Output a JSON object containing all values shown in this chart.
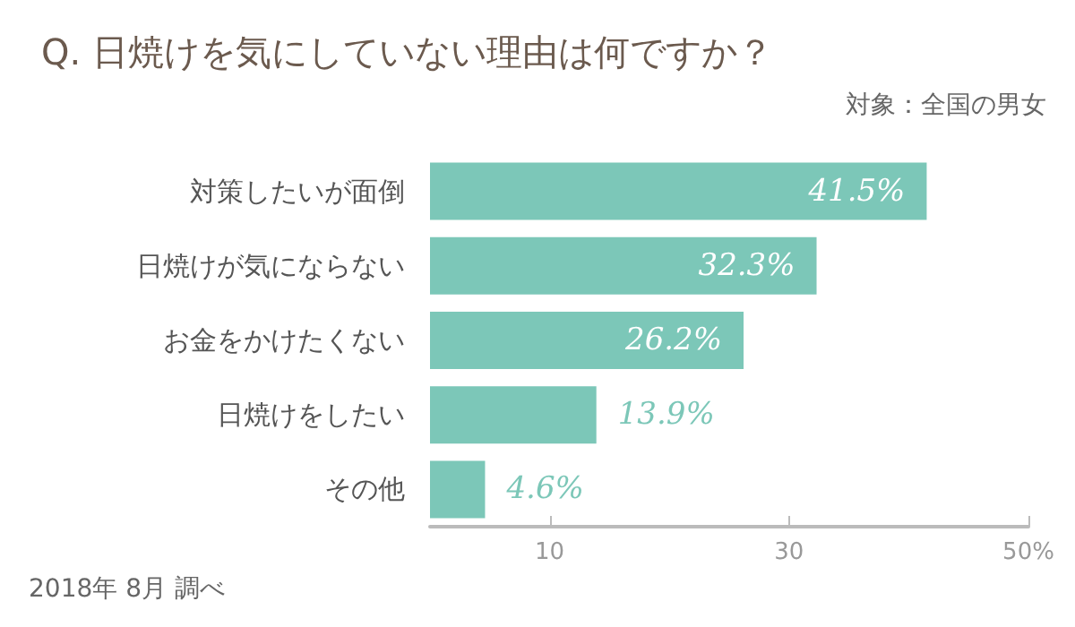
{
  "chart_data": {
    "type": "bar",
    "orientation": "horizontal",
    "title": "Q. 日焼けを気にしていない理由は何ですか？",
    "annotations": [
      "対象：全国の男女",
      "2018年 8月 調べ"
    ],
    "categories": [
      "対策したいが面倒",
      "日焼けが気にならない",
      "お金をかけたくない",
      "日焼けをしたい",
      "その他"
    ],
    "values": [
      41.5,
      32.3,
      26.2,
      13.9,
      4.6
    ],
    "color": "#7cc7b8",
    "value_labels": [
      "41.5%",
      "32.3%",
      "26.2%",
      "13.9%",
      "4.6%"
    ],
    "xlim": [
      0,
      50
    ],
    "xticks": [
      10,
      30,
      {
        "value": 50,
        "label": "50%"
      }
    ],
    "grid": false
  }
}
